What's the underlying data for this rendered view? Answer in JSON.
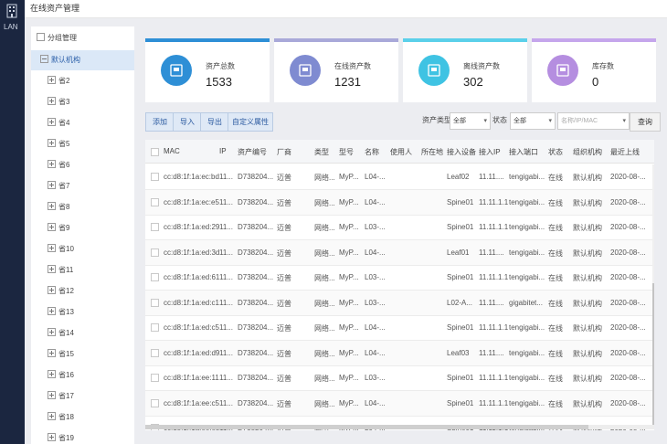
{
  "app": {
    "lan_label": "LAN",
    "title": "在线资产管理"
  },
  "sidebar": {
    "header": "分组管理",
    "root": "默认机构",
    "items": [
      "省2",
      "省3",
      "省4",
      "省5",
      "省6",
      "省7",
      "省8",
      "省9",
      "省10",
      "省11",
      "省12",
      "省13",
      "省14",
      "省15",
      "省16",
      "省17",
      "省18",
      "省19"
    ]
  },
  "cards": [
    {
      "label": "资产总数",
      "value": "1533",
      "color": "#2e8fd6",
      "bar": "#2e8fd6"
    },
    {
      "label": "在线资产数",
      "value": "1231",
      "color": "#7f8bd1",
      "bar": "#a9a9d9"
    },
    {
      "label": "离线资产数",
      "value": "302",
      "color": "#3fc3e3",
      "bar": "#5bd0ea"
    },
    {
      "label": "库存数",
      "value": "0",
      "color": "#b58ee0",
      "bar": "#c5a6ec"
    }
  ],
  "toolbar": {
    "add": "添加",
    "import": "导入",
    "export": "导出",
    "custom": "自定义属性",
    "type_label": "资产类型",
    "type_value": "全部",
    "status_label": "状态",
    "status_value": "全部",
    "search_placeholder": "名称/IP/MAC",
    "query": "查询"
  },
  "table": {
    "columns": [
      "MAC",
      "IP",
      "资产编号",
      "厂商",
      "类型",
      "型号",
      "名称",
      "使用人",
      "所在地",
      "接入设备",
      "接入IP",
      "接入端口",
      "状态",
      "组织机构",
      "最近上线"
    ],
    "rows": [
      [
        "cc:d8:1f:1a:ec:bd",
        "11...",
        "D738204...",
        "迈普",
        "网络...",
        "MyP...",
        "L04-...",
        "",
        "",
        "Leaf02",
        "11.11....",
        "tengigabi...",
        "在线",
        "默认机构",
        "2020-08-..."
      ],
      [
        "cc:d8:1f:1a:ec:e5",
        "11...",
        "D738204...",
        "迈普",
        "网络...",
        "MyP...",
        "L04-...",
        "",
        "",
        "Spine01",
        "11.11.1.1",
        "tengigabi...",
        "在线",
        "默认机构",
        "2020-08-..."
      ],
      [
        "cc:d8:1f:1a:ed:29",
        "11...",
        "D738204...",
        "迈普",
        "网络...",
        "MyP...",
        "L03-...",
        "",
        "",
        "Spine01",
        "11.11.1.1",
        "tengigabi...",
        "在线",
        "默认机构",
        "2020-08-..."
      ],
      [
        "cc:d8:1f:1a:ed:3d",
        "11...",
        "D738204...",
        "迈普",
        "网络...",
        "MyP...",
        "L04-...",
        "",
        "",
        "Leaf01",
        "11.11....",
        "tengigabi...",
        "在线",
        "默认机构",
        "2020-08-..."
      ],
      [
        "cc:d8:1f:1a:ed:61",
        "11...",
        "D738204...",
        "迈普",
        "网络...",
        "MyP...",
        "L03-...",
        "",
        "",
        "Spine01",
        "11.11.1.1",
        "tengigabi...",
        "在线",
        "默认机构",
        "2020-08-..."
      ],
      [
        "cc:d8:1f:1a:ed:c1",
        "11...",
        "D738204...",
        "迈普",
        "网络...",
        "MyP...",
        "L03-...",
        "",
        "",
        "L02-A...",
        "11.11....",
        "gigabitet...",
        "在线",
        "默认机构",
        "2020-08-..."
      ],
      [
        "cc:d8:1f:1a:ed:c5",
        "11...",
        "D738204...",
        "迈普",
        "网络...",
        "MyP...",
        "L04-...",
        "",
        "",
        "Spine01",
        "11.11.1.1",
        "tengigabi...",
        "在线",
        "默认机构",
        "2020-08-..."
      ],
      [
        "cc:d8:1f:1a:ed:d9",
        "11...",
        "D738204...",
        "迈普",
        "网络...",
        "MyP...",
        "L04-...",
        "",
        "",
        "Leaf03",
        "11.11....",
        "tengigabi...",
        "在线",
        "默认机构",
        "2020-08-..."
      ],
      [
        "cc:d8:1f:1a:ee:11",
        "11...",
        "D738204...",
        "迈普",
        "网络...",
        "MyP...",
        "L03-...",
        "",
        "",
        "Spine01",
        "11.11.1.1",
        "tengigabi...",
        "在线",
        "默认机构",
        "2020-08-..."
      ],
      [
        "cc:d8:1f:1a:ee:c5",
        "11...",
        "D738204...",
        "迈普",
        "网络...",
        "MyP...",
        "L04-...",
        "",
        "",
        "Spine01",
        "11.11.1.1",
        "tengigabi...",
        "在线",
        "默认机构",
        "2020-08-..."
      ],
      [
        "cc:d8:1f:1a:ee:e5",
        "11...",
        "D738204...",
        "迈普",
        "网络...",
        "MyP...",
        "L04-...",
        "",
        "",
        "Spine01",
        "11.11.1.1",
        "tengigabi...",
        "在线",
        "默认机构",
        "2020-08-..."
      ]
    ]
  }
}
